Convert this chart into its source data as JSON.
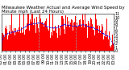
{
  "title": "Milwaukee Weather Actual and Average Wind Speed by Minute mph (Last 24 Hours)",
  "background_color": "#ffffff",
  "plot_background": "#ffffff",
  "bar_color": "#ff0000",
  "line_color": "#0000ff",
  "line_style": "--",
  "line_width": 0.5,
  "ylim": [
    0,
    11
  ],
  "xlim": [
    0,
    1440
  ],
  "yticks": [
    0,
    1,
    2,
    3,
    4,
    5,
    6,
    7,
    8,
    9,
    10,
    11
  ],
  "ytick_labels": [
    "0",
    "1",
    "2",
    "3",
    "4",
    "5",
    "6",
    "7",
    "8",
    "9",
    "10",
    "11"
  ],
  "vline_positions": [
    480,
    960
  ],
  "vline_color": "#999999",
  "vline_style": "--",
  "n_points": 1440,
  "title_fontsize": 4,
  "tick_fontsize": 3.5,
  "figsize": [
    1.6,
    0.87
  ],
  "dpi": 100
}
